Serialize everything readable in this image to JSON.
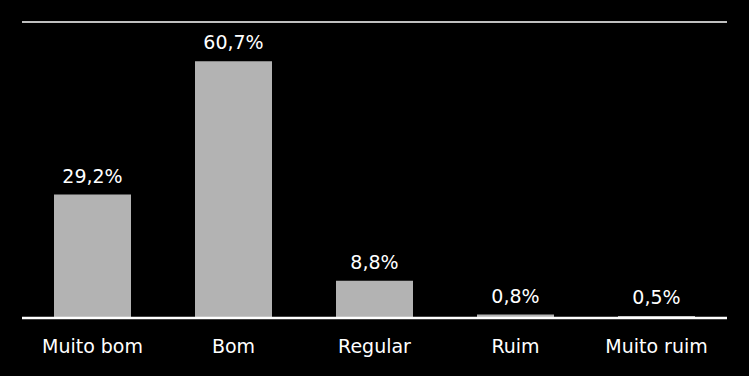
{
  "chart_data": {
    "type": "bar",
    "categories": [
      "Muito bom",
      "Bom",
      "Regular",
      "Ruim",
      "Muito ruim"
    ],
    "values": [
      29.2,
      60.7,
      8.8,
      0.8,
      0.5
    ],
    "value_labels": [
      "29,2%",
      "60,7%",
      "8,8%",
      "0,8%",
      "0,5%"
    ],
    "color": "#b3b3b3",
    "ylim": [
      0,
      70
    ],
    "yticks": [
      0,
      10,
      20,
      30,
      40,
      50,
      60,
      70
    ],
    "grid": true,
    "data_labels": true,
    "tick_labels": "x"
  }
}
